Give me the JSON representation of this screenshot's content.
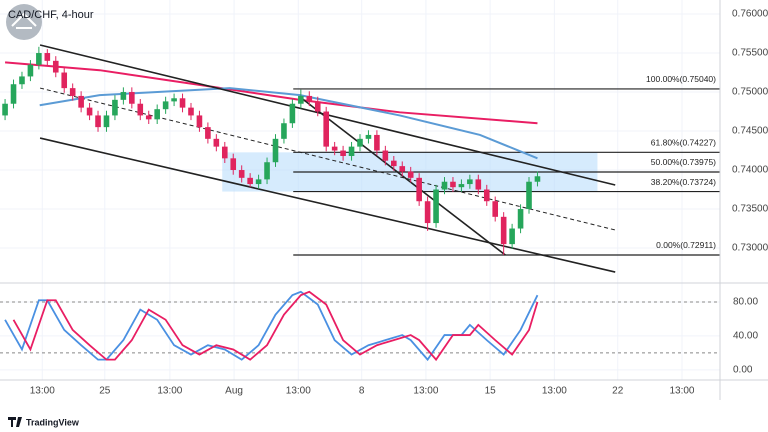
{
  "chart_data": [
    {
      "type": "candlestick",
      "title": "CAD/CHF, 4-hour",
      "up_color": "#26a65b",
      "down_color": "#e0245e",
      "grid": true,
      "xlim": [
        -0.6,
        84.6
      ],
      "ylim": [
        0.7259,
        0.7618
      ],
      "xticks": [
        {
          "value": 4.4,
          "label": "13:00"
        },
        {
          "value": 11.8,
          "label": "25"
        },
        {
          "value": 19.5,
          "label": "13:00"
        },
        {
          "value": 27.1,
          "label": "Aug"
        },
        {
          "value": 34.7,
          "label": "13:00"
        },
        {
          "value": 42.2,
          "label": "8"
        },
        {
          "value": 49.8,
          "label": "13:00"
        },
        {
          "value": 57.4,
          "label": "15"
        },
        {
          "value": 65,
          "label": "13:00"
        },
        {
          "value": 72.5,
          "label": "22"
        },
        {
          "value": 80.1,
          "label": "13:00"
        }
      ],
      "yticks": [
        {
          "value": 0.76,
          "label": "0.76000"
        },
        {
          "value": 0.755,
          "label": "0.75500"
        },
        {
          "value": 0.75,
          "label": "0.75000"
        },
        {
          "value": 0.745,
          "label": "0.74500"
        },
        {
          "value": 0.74,
          "label": "0.74000"
        },
        {
          "value": 0.735,
          "label": "0.73500"
        },
        {
          "value": 0.73,
          "label": "0.73000"
        }
      ],
      "x": [
        0,
        1,
        2,
        3,
        4,
        5,
        6,
        7,
        8,
        9,
        10,
        11,
        12,
        13,
        14,
        15,
        16,
        17,
        18,
        19,
        20,
        21,
        22,
        23,
        24,
        25,
        26,
        27,
        28,
        29,
        30,
        31,
        32,
        33,
        34,
        35,
        36,
        37,
        38,
        39,
        40,
        41,
        42,
        43,
        44,
        45,
        46,
        47,
        48,
        49,
        50,
        51,
        52,
        53,
        54,
        55,
        56,
        57,
        58,
        59,
        60,
        61,
        62,
        63
      ],
      "open": [
        0.747,
        0.7485,
        0.751,
        0.752,
        0.7535,
        0.755,
        0.754,
        0.7525,
        0.7505,
        0.7495,
        0.748,
        0.747,
        0.7455,
        0.747,
        0.749,
        0.75,
        0.7485,
        0.747,
        0.7465,
        0.7478,
        0.7488,
        0.7492,
        0.748,
        0.747,
        0.7455,
        0.744,
        0.743,
        0.7415,
        0.74,
        0.739,
        0.7382,
        0.7388,
        0.741,
        0.744,
        0.746,
        0.7485,
        0.7495,
        0.7488,
        0.7475,
        0.743,
        0.7425,
        0.7418,
        0.743,
        0.744,
        0.7445,
        0.7425,
        0.7412,
        0.7405,
        0.7398,
        0.739,
        0.736,
        0.7332,
        0.7375,
        0.7385,
        0.7378,
        0.7382,
        0.7388,
        0.7375,
        0.736,
        0.734,
        0.7305,
        0.7325,
        0.735,
        0.7385
      ],
      "high": [
        0.7491,
        0.7516,
        0.7526,
        0.7541,
        0.7558,
        0.7555,
        0.7546,
        0.7531,
        0.7511,
        0.7501,
        0.7486,
        0.7476,
        0.7476,
        0.7496,
        0.7506,
        0.7506,
        0.7491,
        0.7476,
        0.7484,
        0.7494,
        0.7498,
        0.7498,
        0.7486,
        0.7476,
        0.7461,
        0.7446,
        0.7436,
        0.7421,
        0.7406,
        0.7396,
        0.7394,
        0.7416,
        0.7446,
        0.7466,
        0.7491,
        0.7503,
        0.7501,
        0.7494,
        0.7481,
        0.7436,
        0.7431,
        0.7436,
        0.7446,
        0.7451,
        0.7451,
        0.7431,
        0.7418,
        0.7411,
        0.7404,
        0.7396,
        0.7366,
        0.7381,
        0.7391,
        0.7391,
        0.7388,
        0.7394,
        0.7394,
        0.7381,
        0.7366,
        0.7346,
        0.7331,
        0.7356,
        0.7391,
        0.7398
      ],
      "low": [
        0.7464,
        0.7479,
        0.7504,
        0.7514,
        0.7529,
        0.7534,
        0.7519,
        0.7499,
        0.7489,
        0.7474,
        0.7464,
        0.7449,
        0.7449,
        0.7464,
        0.7484,
        0.7479,
        0.7464,
        0.7459,
        0.7459,
        0.7472,
        0.7482,
        0.7474,
        0.7464,
        0.7449,
        0.7434,
        0.7424,
        0.7409,
        0.7394,
        0.7384,
        0.7378,
        0.7376,
        0.7382,
        0.7404,
        0.7434,
        0.7454,
        0.7479,
        0.7482,
        0.7469,
        0.7424,
        0.7419,
        0.7412,
        0.7412,
        0.7424,
        0.7434,
        0.7419,
        0.7406,
        0.7399,
        0.7392,
        0.7384,
        0.7354,
        0.7322,
        0.7326,
        0.7369,
        0.7372,
        0.7372,
        0.7376,
        0.7369,
        0.7354,
        0.7334,
        0.7291,
        0.7299,
        0.7319,
        0.7344,
        0.7379
      ],
      "close": [
        0.7485,
        0.751,
        0.752,
        0.7535,
        0.755,
        0.754,
        0.7525,
        0.7505,
        0.7495,
        0.748,
        0.747,
        0.7455,
        0.747,
        0.749,
        0.75,
        0.7485,
        0.747,
        0.7465,
        0.7478,
        0.7488,
        0.7492,
        0.748,
        0.747,
        0.7455,
        0.744,
        0.743,
        0.7415,
        0.74,
        0.739,
        0.7382,
        0.7388,
        0.741,
        0.744,
        0.746,
        0.7485,
        0.7495,
        0.7488,
        0.7475,
        0.743,
        0.7425,
        0.7418,
        0.743,
        0.744,
        0.7445,
        0.7425,
        0.7412,
        0.7405,
        0.7398,
        0.739,
        0.736,
        0.7332,
        0.7375,
        0.7385,
        0.7378,
        0.7382,
        0.7388,
        0.7375,
        0.736,
        0.734,
        0.7305,
        0.7325,
        0.735,
        0.7385,
        0.7392
      ],
      "lines": [
        {
          "color": "#e91e63",
          "x": [
            0,
            11.2,
            23.1,
            34.9,
            46.7,
            63
          ],
          "values": [
            0.7538,
            0.7528,
            0.7509,
            0.749,
            0.7474,
            0.746
          ]
        },
        {
          "color": "#5b9bd5",
          "x": [
            4.1,
            11.2,
            26.6,
            34.9,
            46.7,
            56.2,
            63
          ],
          "values": [
            0.7483,
            0.7496,
            0.7505,
            0.7496,
            0.747,
            0.7445,
            0.7415
          ]
        }
      ],
      "trendlines": [
        {
          "x": [
            4.14,
            72.2
          ],
          "values": [
            0.75603,
            0.73808
          ],
          "dashed": false
        },
        {
          "x": [
            4.14,
            72.2
          ],
          "values": [
            0.75051,
            0.73231
          ],
          "dashed": true
        },
        {
          "x": [
            4.14,
            72.2
          ],
          "values": [
            0.7441,
            0.72692
          ],
          "dashed": false
        },
        {
          "x": [
            34.9,
            59.2
          ],
          "values": [
            0.74936,
            0.7291
          ],
          "dashed": false
        }
      ],
      "fib_x": [
        34.1,
        84.6
      ],
      "fib_zone_x": [
        25.7,
        70.1
      ],
      "fib_levels": [
        {
          "value": 0.7504,
          "label": "100.00%(0.75040)"
        },
        {
          "value": 0.74227,
          "label": "61.80%(0.74227)"
        },
        {
          "value": 0.73975,
          "label": "50.00%(0.73975)"
        },
        {
          "value": 0.73724,
          "label": "38.20%(0.73724)"
        },
        {
          "value": 0.72911,
          "label": "0.00%(0.72911)"
        }
      ]
    },
    {
      "type": "line",
      "xlim": [
        -0.6,
        84.6
      ],
      "ylim": [
        -12,
        100
      ],
      "yticks": [
        {
          "value": 80,
          "label": "80.00"
        },
        {
          "value": 40,
          "label": "40.00"
        },
        {
          "value": 0,
          "label": "0.00"
        }
      ],
      "levels": [
        80,
        20
      ],
      "series": [
        {
          "color": "#4a90e2",
          "x": [
            0,
            2,
            4,
            5,
            7,
            9,
            11,
            12,
            14,
            16,
            18,
            20,
            22,
            24,
            26,
            28,
            30,
            32,
            34,
            35,
            37,
            39,
            41,
            43,
            45,
            47,
            48,
            50,
            52,
            54,
            55,
            57,
            59,
            61,
            63
          ],
          "values": [
            59,
            24,
            82,
            82,
            47,
            29,
            12,
            12,
            35,
            71,
            59,
            29,
            18,
            29,
            24,
            12,
            29,
            65,
            88,
            92,
            77,
            35,
            18,
            29,
            35,
            41,
            35,
            12,
            41,
            41,
            53,
            35,
            18,
            47,
            88
          ]
        },
        {
          "color": "#e91e63",
          "x": [
            1,
            3,
            5,
            6,
            8,
            10,
            12,
            13,
            15,
            17,
            19,
            21,
            23,
            25,
            27,
            29,
            31,
            33,
            35,
            36,
            38,
            40,
            42,
            44,
            46,
            48,
            49,
            51,
            53,
            55,
            56,
            58,
            60,
            62,
            63
          ],
          "values": [
            59,
            24,
            82,
            82,
            47,
            29,
            12,
            12,
            35,
            71,
            59,
            29,
            18,
            29,
            24,
            12,
            29,
            65,
            88,
            92,
            77,
            35,
            18,
            29,
            35,
            41,
            35,
            12,
            41,
            41,
            53,
            35,
            18,
            47,
            80
          ]
        }
      ]
    }
  ],
  "footer": "TradingView"
}
